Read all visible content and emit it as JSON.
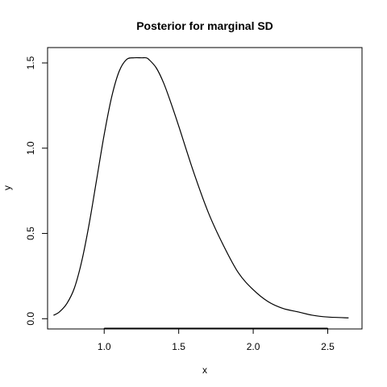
{
  "chart_data": {
    "type": "line",
    "title": "Posterior for marginal SD",
    "xlabel": "x",
    "ylabel": "y",
    "xlim": [
      0.62,
      2.73
    ],
    "ylim": [
      -0.06,
      1.59
    ],
    "xticks": [
      1.0,
      1.5,
      2.0,
      2.5
    ],
    "xtick_labels": [
      "1.0",
      "1.5",
      "2.0",
      "2.5"
    ],
    "yticks": [
      0.0,
      0.5,
      1.0,
      1.5
    ],
    "ytick_labels": [
      "0.0",
      "0.5",
      "1.0",
      "1.5"
    ],
    "grid": false,
    "legend": "none",
    "line_color": "#000000",
    "series": [
      {
        "x": [
          0.66,
          0.7,
          0.75,
          0.8,
          0.85,
          0.9,
          0.95,
          1.0,
          1.05,
          1.1,
          1.15,
          1.2,
          1.25,
          1.28,
          1.3,
          1.35,
          1.4,
          1.45,
          1.5,
          1.6,
          1.7,
          1.8,
          1.9,
          2.0,
          2.1,
          2.2,
          2.3,
          2.4,
          2.5,
          2.64
        ],
        "y": [
          0.02,
          0.04,
          0.09,
          0.18,
          0.34,
          0.56,
          0.82,
          1.08,
          1.3,
          1.45,
          1.52,
          1.53,
          1.53,
          1.53,
          1.52,
          1.47,
          1.38,
          1.26,
          1.13,
          0.86,
          0.62,
          0.43,
          0.27,
          0.17,
          0.1,
          0.06,
          0.04,
          0.02,
          0.01,
          0.005
        ]
      }
    ]
  }
}
